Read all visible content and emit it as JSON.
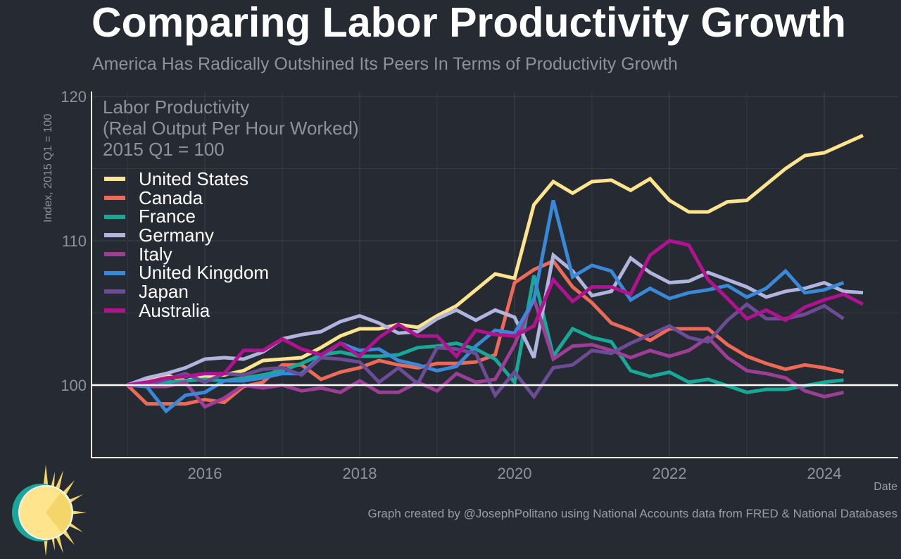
{
  "header": {
    "title": "Comparing Labor Productivity Growth",
    "subtitle": "America Has Radically Outshined Its Peers In Terms of Productivity Growth"
  },
  "footer": {
    "caption": "Graph created by @JosephPolitano using National Accounts data from FRED & National Databases"
  },
  "chart_data": {
    "type": "line",
    "title": "Comparing Labor Productivity Growth",
    "inset_title": [
      "Labor Productivity",
      "(Real Output Per Hour Worked)",
      "2015 Q1 = 100"
    ],
    "xlabel": "Date",
    "ylabel": "Index, 2015 Q1 = 100",
    "x_start": "2015 Q1",
    "x_frequency": "quarterly",
    "ylim": [
      95,
      120
    ],
    "y_ticks": [
      "100",
      "110",
      "120"
    ],
    "x_ticks": [
      "2016",
      "2018",
      "2020",
      "2022",
      "2024"
    ],
    "reference_line": 100,
    "grid": true,
    "legend_position": "top-left",
    "background": "#252a33",
    "series": [
      {
        "name": "United States",
        "color": "#fde48d",
        "values": [
          100,
          100.3,
          100.7,
          100.3,
          100.6,
          100.7,
          101.0,
          101.7,
          101.8,
          101.9,
          102.6,
          103.4,
          103.9,
          103.9,
          104.2,
          104.0,
          104.8,
          105.5,
          106.6,
          107.7,
          107.4,
          112.5,
          114.1,
          113.3,
          114.1,
          114.2,
          113.5,
          114.3,
          112.8,
          112.0,
          112.0,
          112.7,
          112.8,
          113.9,
          115.0,
          115.9,
          116.1,
          116.7,
          117.3
        ]
      },
      {
        "name": "Canada",
        "color": "#ee6a58",
        "values": [
          100,
          98.7,
          98.7,
          98.7,
          99.0,
          98.8,
          99.9,
          100.2,
          101.4,
          101.4,
          100.4,
          100.9,
          101.2,
          101.7,
          101.4,
          101.2,
          101.5,
          101.5,
          101.6,
          102.1,
          107.1,
          108.0,
          108.6,
          106.8,
          105.7,
          104.3,
          103.8,
          103.1,
          103.9,
          103.9,
          103.9,
          102.8,
          102.0,
          101.5,
          101.1,
          101.4,
          101.2,
          100.9
        ]
      },
      {
        "name": "France",
        "color": "#17a898",
        "values": [
          100,
          100.2,
          100.2,
          100.3,
          100.4,
          100.3,
          100.5,
          100.7,
          101.0,
          101.5,
          102.1,
          102.3,
          102.0,
          102.0,
          102.1,
          102.6,
          102.7,
          102.9,
          102.5,
          101.8,
          100.2,
          107.6,
          102.0,
          103.9,
          103.3,
          103.0,
          101.0,
          100.6,
          100.9,
          100.2,
          100.4,
          99.95,
          99.5,
          99.7,
          99.7,
          99.95,
          100.2,
          100.35
        ]
      },
      {
        "name": "Germany",
        "color": "#b1b4dd",
        "values": [
          100,
          100.5,
          100.8,
          101.2,
          101.8,
          101.9,
          101.8,
          102.3,
          103.2,
          103.5,
          103.7,
          104.4,
          104.8,
          104.3,
          103.6,
          103.7,
          104.6,
          105.2,
          104.5,
          105.2,
          104.7,
          101.9,
          109.0,
          107.9,
          106.2,
          106.5,
          108.8,
          107.8,
          107.1,
          107.2,
          107.8,
          107.3,
          106.8,
          106.1,
          106.5,
          106.7,
          107.1,
          106.5,
          106.4
        ]
      },
      {
        "name": "Italy",
        "color": "#9b3e94",
        "values": [
          100,
          99.9,
          99.9,
          100.2,
          98.5,
          99.1,
          100.0,
          99.8,
          100.0,
          99.6,
          99.8,
          99.5,
          100.3,
          99.5,
          99.5,
          100.2,
          99.6,
          100.8,
          100.2,
          100.4,
          102.8,
          106.0,
          101.8,
          102.7,
          102.8,
          102.4,
          101.9,
          102.4,
          102.0,
          102.4,
          103.3,
          101.9,
          101.0,
          100.8,
          100.5,
          99.6,
          99.2,
          99.5
        ]
      },
      {
        "name": "United Kingdom",
        "color": "#3a88d8",
        "values": [
          100,
          99.9,
          98.2,
          99.3,
          99.5,
          100.3,
          100.3,
          100.5,
          100.8,
          100.8,
          102.0,
          102.9,
          102.4,
          102.5,
          101.7,
          101.4,
          101.0,
          101.3,
          102.7,
          103.8,
          103.6,
          105.9,
          112.8,
          107.5,
          108.3,
          107.9,
          105.9,
          106.7,
          106.0,
          106.4,
          106.6,
          106.9,
          106.1,
          106.7,
          107.9,
          106.4,
          106.6,
          107.1
        ]
      },
      {
        "name": "Japan",
        "color": "#6b4c95",
        "values": [
          100,
          100,
          100.4,
          100.8,
          100.2,
          100.8,
          100.7,
          101.1,
          101.2,
          100.7,
          101.9,
          101.8,
          101.6,
          100.2,
          101.2,
          100.1,
          102.6,
          102.5,
          102.2,
          99.3,
          100.9,
          99.2,
          101.2,
          101.4,
          102.4,
          102.2,
          102.9,
          103.5,
          104.1,
          103.3,
          103.0,
          104.5,
          105.6,
          104.6,
          104.6,
          104.9,
          105.5,
          104.6
        ]
      },
      {
        "name": "Australia",
        "color": "#b1128f",
        "values": [
          100,
          100.2,
          100.5,
          100.6,
          100.8,
          100.8,
          102.4,
          102.4,
          103.2,
          102.5,
          102.1,
          102.9,
          102.0,
          103.3,
          104.2,
          103.4,
          103.4,
          102.0,
          103.8,
          103.5,
          103.4,
          104.1,
          107.3,
          105.8,
          106.8,
          106.8,
          106.3,
          109.0,
          110.0,
          109.7,
          107.3,
          106.0,
          104.6,
          105.2,
          104.5,
          105.4,
          105.9,
          106.3,
          105.6
        ]
      }
    ]
  }
}
